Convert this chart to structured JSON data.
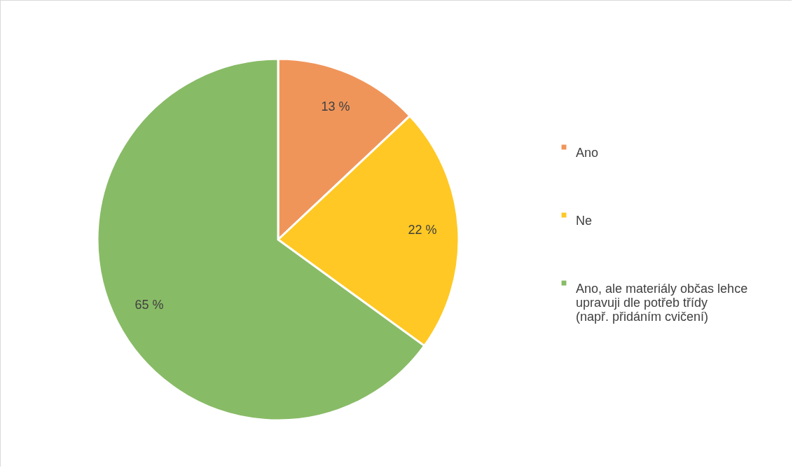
{
  "chart_data": {
    "type": "pie",
    "categories": [
      "Ano",
      "Ne",
      "Ano, ale materiály občas lehce upravuji dle potřeb třídy (např. přidáním cvičení)"
    ],
    "values": [
      13,
      22,
      65
    ],
    "colors": [
      "#f0955a",
      "#ffc824",
      "#88bb66"
    ],
    "value_labels": [
      "13 %",
      "22 %",
      "65 %"
    ],
    "legend": "right"
  }
}
